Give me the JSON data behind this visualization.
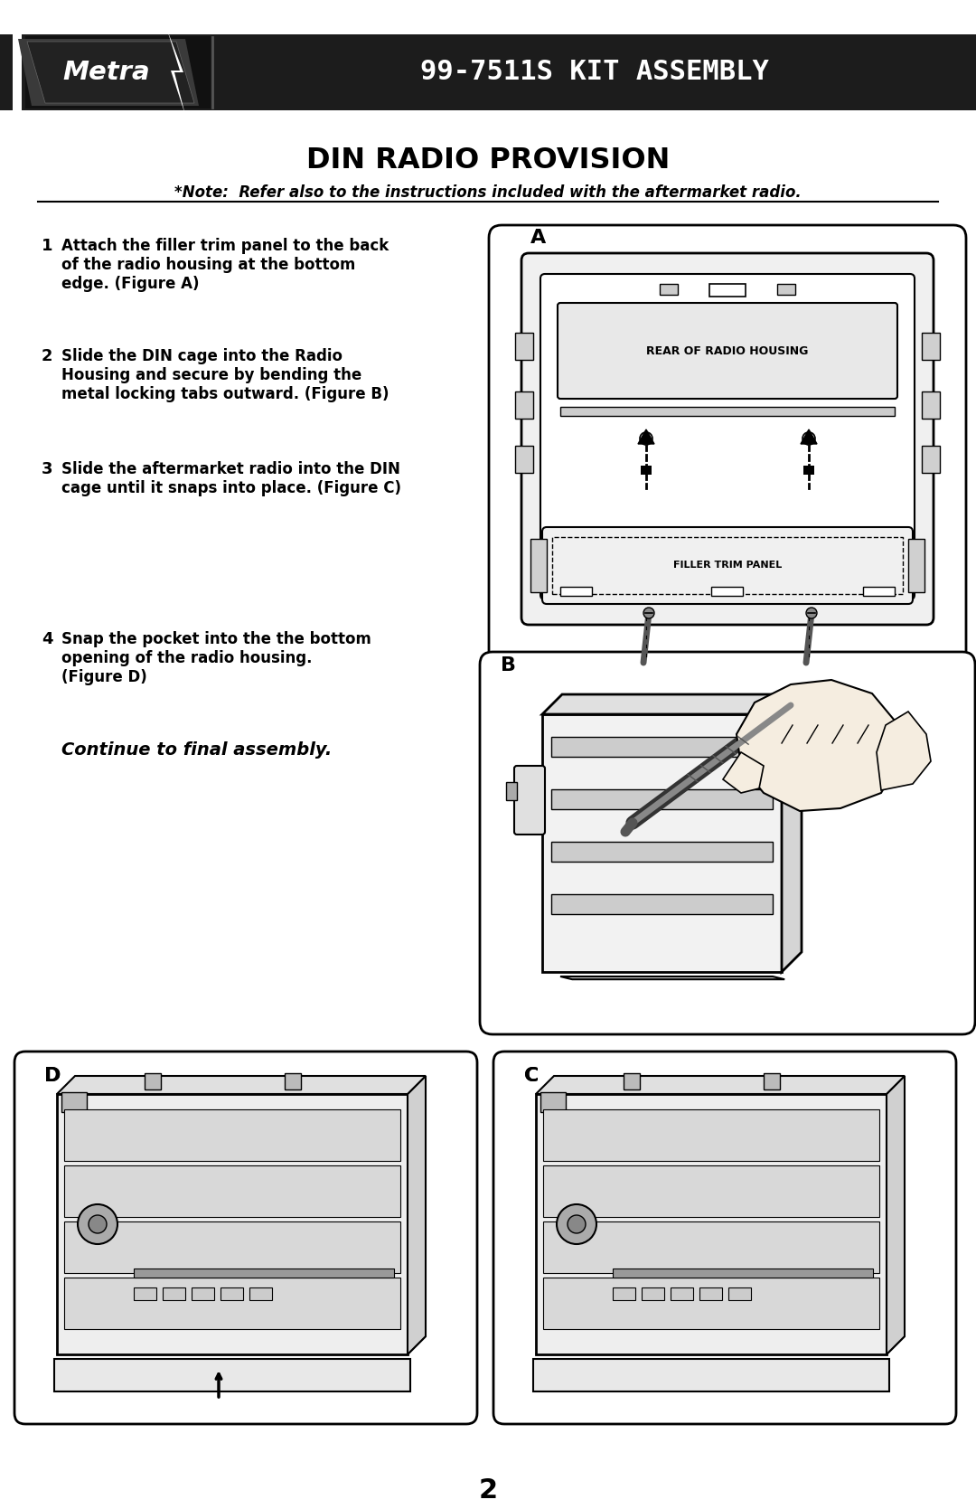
{
  "bg_color": "#ffffff",
  "header_bg": "#1c1c1c",
  "header_text": "99-7511S KIT ASSEMBLY",
  "header_text_color": "#ffffff",
  "title": "DIN RADIO PROVISION",
  "note": "*Note:  Refer also to the instructions included with the aftermarket radio.",
  "steps": [
    {
      "num": "1",
      "text": "Attach the filler trim panel to the back\nof the radio housing at the bottom\nedge. (Figure A)"
    },
    {
      "num": "2",
      "text": "Slide the DIN cage into the Radio\nHousing and secure by bending the\nmetal locking tabs outward. (Figure B)"
    },
    {
      "num": "3",
      "text": "Slide the aftermarket radio into the DIN\ncage until it snaps into place. (Figure C)"
    },
    {
      "num": "4",
      "text": "Snap the pocket into the the bottom\nopening of the radio housing.\n(Figure D)"
    }
  ],
  "continue_text": "Continue to final assembly.",
  "page_num": "2",
  "fig_a_label": "A",
  "fig_b_label": "B",
  "fig_c_label": "C",
  "fig_d_label": "D",
  "rear_label": "REAR OF RADIO HOUSING",
  "filler_label": "FILLER TRIM PANEL",
  "logo_text": "Metra"
}
